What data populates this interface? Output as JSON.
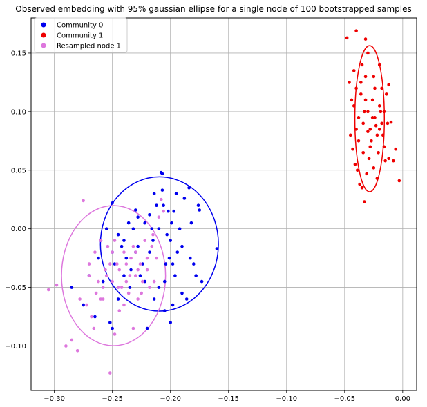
{
  "chart_data": {
    "type": "scatter",
    "title": "Observed embedding with 95% gaussian ellipse for a single node of 100 bootstrapped samples",
    "xlabel": "",
    "ylabel": "",
    "xlim": [
      -0.32,
      0.012
    ],
    "ylim": [
      -0.138,
      0.18
    ],
    "grid": true,
    "legend_position": "top-left",
    "x_ticks": [
      -0.3,
      -0.25,
      -0.2,
      -0.15,
      -0.1,
      -0.05,
      0.0
    ],
    "x_tick_labels": [
      "−0.30",
      "−0.25",
      "−0.20",
      "−0.15",
      "−0.10",
      "−0.05",
      "0.00"
    ],
    "y_ticks": [
      -0.1,
      -0.05,
      0.0,
      0.05,
      0.1,
      0.15
    ],
    "y_tick_labels": [
      "−0.10",
      "−0.05",
      "0.00",
      "0.05",
      "0.10",
      "0.15"
    ],
    "series": [
      {
        "name": "Community 0",
        "color": "#0000ee",
        "points": [
          [
            -0.285,
            -0.05
          ],
          [
            -0.275,
            -0.065
          ],
          [
            -0.27,
            -0.04
          ],
          [
            -0.26,
            -0.01
          ],
          [
            -0.255,
            0.0
          ],
          [
            -0.252,
            -0.08
          ],
          [
            -0.25,
            -0.085
          ],
          [
            -0.25,
            0.022
          ],
          [
            -0.248,
            -0.03
          ],
          [
            -0.245,
            -0.06
          ],
          [
            -0.242,
            -0.015
          ],
          [
            -0.24,
            -0.01
          ],
          [
            -0.238,
            -0.025
          ],
          [
            -0.236,
            0.005
          ],
          [
            -0.234,
            -0.035
          ],
          [
            -0.232,
            0.0
          ],
          [
            -0.23,
            -0.02
          ],
          [
            -0.228,
            0.01
          ],
          [
            -0.226,
            -0.04
          ],
          [
            -0.224,
            -0.03
          ],
          [
            -0.222,
            0.005
          ],
          [
            -0.22,
            -0.085
          ],
          [
            -0.218,
            -0.02
          ],
          [
            -0.216,
            0.0
          ],
          [
            -0.214,
            -0.06
          ],
          [
            -0.212,
            0.02
          ],
          [
            -0.21,
            -0.05
          ],
          [
            -0.208,
            0.048
          ],
          [
            -0.207,
            0.047
          ],
          [
            -0.206,
            0.02
          ],
          [
            -0.205,
            -0.07
          ],
          [
            -0.204,
            -0.03
          ],
          [
            -0.203,
            -0.005
          ],
          [
            -0.202,
            0.015
          ],
          [
            -0.201,
            -0.025
          ],
          [
            -0.2,
            -0.08
          ],
          [
            -0.199,
            0.005
          ],
          [
            -0.198,
            -0.03
          ],
          [
            -0.196,
            -0.04
          ],
          [
            -0.195,
            0.03
          ],
          [
            -0.194,
            -0.02
          ],
          [
            -0.192,
            0.0
          ],
          [
            -0.19,
            -0.015
          ],
          [
            -0.188,
            0.026
          ],
          [
            -0.186,
            -0.06
          ],
          [
            -0.184,
            0.035
          ],
          [
            -0.183,
            -0.025
          ],
          [
            -0.182,
            0.005
          ],
          [
            -0.18,
            -0.03
          ],
          [
            -0.178,
            -0.04
          ],
          [
            -0.176,
            0.02
          ],
          [
            -0.175,
            0.016
          ],
          [
            -0.173,
            -0.045
          ],
          [
            -0.16,
            -0.017
          ],
          [
            -0.258,
            -0.045
          ],
          [
            -0.262,
            -0.025
          ],
          [
            -0.245,
            -0.005
          ],
          [
            -0.235,
            -0.05
          ],
          [
            -0.228,
            -0.015
          ],
          [
            -0.218,
            0.012
          ],
          [
            -0.214,
            0.03
          ],
          [
            -0.21,
            0.0
          ],
          [
            -0.2,
            -0.01
          ],
          [
            -0.197,
            0.015
          ],
          [
            -0.19,
            -0.055
          ],
          [
            -0.222,
            -0.045
          ],
          [
            -0.24,
            -0.04
          ],
          [
            -0.25,
            -0.02
          ],
          [
            -0.265,
            -0.075
          ],
          [
            -0.23,
            0.016
          ],
          [
            -0.215,
            -0.01
          ],
          [
            -0.205,
            -0.045
          ],
          [
            -0.198,
            -0.065
          ],
          [
            -0.207,
            0.033
          ]
        ]
      },
      {
        "name": "Community 1",
        "color": "#ee0000",
        "points": [
          [
            -0.048,
            0.163
          ],
          [
            -0.04,
            0.169
          ],
          [
            -0.032,
            0.162
          ],
          [
            -0.046,
            0.125
          ],
          [
            -0.044,
            0.11
          ],
          [
            -0.042,
            0.105
          ],
          [
            -0.04,
            0.12
          ],
          [
            -0.038,
            0.095
          ],
          [
            -0.036,
            0.115
          ],
          [
            -0.034,
            0.09
          ],
          [
            -0.032,
            0.13
          ],
          [
            -0.03,
            0.1
          ],
          [
            -0.028,
            0.085
          ],
          [
            -0.026,
            0.11
          ],
          [
            -0.024,
            0.095
          ],
          [
            -0.022,
            0.08
          ],
          [
            -0.02,
            0.105
          ],
          [
            -0.018,
            0.09
          ],
          [
            -0.016,
            0.07
          ],
          [
            -0.014,
            0.115
          ],
          [
            -0.012,
            0.06
          ],
          [
            -0.01,
            0.091
          ],
          [
            -0.008,
            0.058
          ],
          [
            -0.006,
            0.068
          ],
          [
            -0.003,
            0.041
          ],
          [
            -0.045,
            0.08
          ],
          [
            -0.043,
            0.068
          ],
          [
            -0.041,
            0.055
          ],
          [
            -0.039,
            0.05
          ],
          [
            -0.037,
            0.038
          ],
          [
            -0.035,
            0.035
          ],
          [
            -0.033,
            0.023
          ],
          [
            -0.031,
            0.047
          ],
          [
            -0.029,
            0.06
          ],
          [
            -0.027,
            0.075
          ],
          [
            -0.025,
            0.052
          ],
          [
            -0.023,
            0.088
          ],
          [
            -0.021,
            0.065
          ],
          [
            -0.019,
            0.1
          ],
          [
            -0.017,
            0.08
          ],
          [
            -0.015,
            0.058
          ],
          [
            -0.013,
            0.09
          ],
          [
            -0.035,
            0.14
          ],
          [
            -0.03,
            0.15
          ],
          [
            -0.025,
            0.13
          ],
          [
            -0.02,
            0.14
          ],
          [
            -0.038,
            0.075
          ],
          [
            -0.033,
            0.1
          ],
          [
            -0.028,
            0.07
          ],
          [
            -0.024,
            0.12
          ],
          [
            -0.022,
            0.043
          ],
          [
            -0.018,
            0.12
          ],
          [
            -0.012,
            0.123
          ],
          [
            -0.04,
            0.085
          ],
          [
            -0.034,
            0.065
          ],
          [
            -0.03,
            0.083
          ],
          [
            -0.026,
            0.095
          ],
          [
            -0.02,
            0.085
          ],
          [
            -0.016,
            0.1
          ],
          [
            -0.042,
            0.135
          ],
          [
            -0.036,
            0.125
          ],
          [
            -0.032,
            0.11
          ]
        ]
      },
      {
        "name": "Resampled node 1",
        "color": "#dd77dd",
        "points": [
          [
            -0.305,
            -0.052
          ],
          [
            -0.298,
            -0.048
          ],
          [
            -0.29,
            -0.1
          ],
          [
            -0.285,
            -0.095
          ],
          [
            -0.28,
            -0.104
          ],
          [
            -0.278,
            -0.06
          ],
          [
            -0.275,
            0.024
          ],
          [
            -0.272,
            -0.065
          ],
          [
            -0.27,
            -0.03
          ],
          [
            -0.268,
            -0.075
          ],
          [
            -0.265,
            -0.02
          ],
          [
            -0.262,
            -0.045
          ],
          [
            -0.26,
            -0.01
          ],
          [
            -0.258,
            -0.05
          ],
          [
            -0.256,
            -0.035
          ],
          [
            -0.254,
            -0.015
          ],
          [
            -0.252,
            -0.123
          ],
          [
            -0.25,
            -0.02
          ],
          [
            -0.248,
            -0.09
          ],
          [
            -0.246,
            -0.03
          ],
          [
            -0.244,
            -0.07
          ],
          [
            -0.242,
            -0.05
          ],
          [
            -0.24,
            -0.02
          ],
          [
            -0.238,
            -0.03
          ],
          [
            -0.236,
            -0.055
          ],
          [
            -0.234,
            -0.025
          ],
          [
            -0.232,
            -0.085
          ],
          [
            -0.23,
            -0.04
          ],
          [
            -0.228,
            -0.06
          ],
          [
            -0.226,
            -0.03
          ],
          [
            -0.224,
            -0.045
          ],
          [
            -0.222,
            -0.01
          ],
          [
            -0.22,
            -0.035
          ],
          [
            -0.218,
            -0.05
          ],
          [
            -0.216,
            -0.015
          ],
          [
            -0.214,
            -0.045
          ],
          [
            -0.212,
            -0.025
          ],
          [
            -0.21,
            0.01
          ],
          [
            -0.208,
            0.025
          ],
          [
            -0.206,
            0.015
          ],
          [
            -0.264,
            -0.055
          ],
          [
            -0.26,
            -0.06
          ],
          [
            -0.255,
            -0.04
          ],
          [
            -0.25,
            -0.045
          ],
          [
            -0.245,
            -0.05
          ],
          [
            -0.24,
            -0.065
          ],
          [
            -0.235,
            -0.04
          ],
          [
            -0.23,
            -0.02
          ],
          [
            -0.225,
            -0.055
          ],
          [
            -0.22,
            -0.025
          ],
          [
            -0.27,
            -0.04
          ],
          [
            -0.266,
            -0.085
          ],
          [
            -0.258,
            -0.06
          ],
          [
            -0.252,
            -0.03
          ],
          [
            -0.248,
            -0.01
          ],
          [
            -0.244,
            -0.035
          ],
          [
            -0.238,
            -0.045
          ],
          [
            -0.232,
            -0.015
          ],
          [
            -0.228,
            -0.035
          ],
          [
            -0.215,
            -0.005
          ]
        ]
      }
    ],
    "ellipses": [
      {
        "series": "Community 0",
        "center": [
          -0.2095,
          -0.013
        ],
        "semi_width": 0.0508,
        "semi_height": 0.0573,
        "color": "#0000ee"
      },
      {
        "series": "Community 1",
        "center": [
          -0.0285,
          0.094
        ],
        "semi_width": 0.0127,
        "semi_height": 0.0624,
        "color": "#ee0000"
      },
      {
        "series": "Resampled node 1",
        "center": [
          -0.249,
          -0.04
        ],
        "semi_width": 0.0448,
        "semi_height": 0.0598,
        "color": "#dd77dd"
      }
    ]
  }
}
